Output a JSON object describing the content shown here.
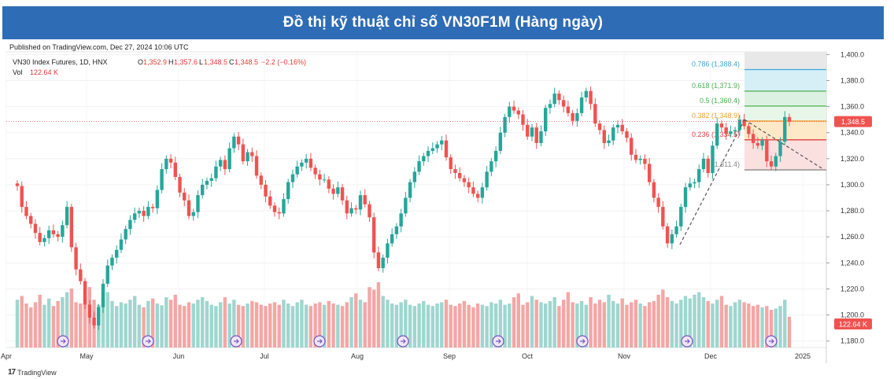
{
  "banner": {
    "title": "Đồ thị kỹ thuật chỉ số VN30F1M (Hàng ngày)"
  },
  "published": "Published on TradingView.com, Dec 27, 2024 10:06 UTC",
  "legend": {
    "symbol": "VN30 Index Futures, 1D, HNX",
    "o_label": "O",
    "o": "1,352.9",
    "h_label": "H",
    "h": "1,357.6",
    "l_label": "L",
    "l": "1,348.5",
    "c_label": "C",
    "c": "1,348.5",
    "change": "−2.2 (−0.16%)",
    "vol_label": "Vol",
    "vol": "122.64 K"
  },
  "watermark": "TradingView",
  "colors": {
    "up": "#26a69a",
    "down": "#ef5350",
    "up_vol": "#9fd6cf",
    "down_vol": "#f3a7a5"
  },
  "chart_data": {
    "type": "candlestick",
    "y_ticks": [
      "1,180.0",
      "1,200.0",
      "1,220.0",
      "1,240.0",
      "1,260.0",
      "1,280.0",
      "1,300.0",
      "1,320.0",
      "1,340.0",
      "1,360.0",
      "1,380.0",
      "1,400.0"
    ],
    "ylim": [
      1175,
      1402
    ],
    "x_ticks": [
      "Apr",
      "May",
      "Jun",
      "Jul",
      "Aug",
      "Sep",
      "Oct",
      "Nov",
      "Dec",
      "2025"
    ],
    "last_price_label": "1,348.5",
    "last_volume_label": "122.64 K",
    "fib_levels": [
      {
        "label": "0.786 (1,388.4)",
        "value": 1388.4,
        "color": "#3fa7d6"
      },
      {
        "label": "0.618 (1,371.9)",
        "value": 1371.9,
        "color": "#4caf50"
      },
      {
        "label": "0.5 (1,360.4)",
        "value": 1360.4,
        "color": "#4caf50"
      },
      {
        "label": "0.382 (1,348.9)",
        "value": 1348.9,
        "color": "#f0a030"
      },
      {
        "label": "0.236 (1,334.5)",
        "value": 1334.5,
        "color": "#e04040"
      },
      {
        "label": "0 (1,311.4)",
        "value": 1311.4,
        "color": "#888888"
      }
    ],
    "closes": [
      1299,
      1283,
      1276,
      1270,
      1263,
      1256,
      1259,
      1265,
      1262,
      1260,
      1269,
      1283,
      1252,
      1235,
      1226,
      1208,
      1198,
      1192,
      1206,
      1224,
      1238,
      1244,
      1250,
      1258,
      1266,
      1273,
      1278,
      1280,
      1276,
      1283,
      1282,
      1296,
      1312,
      1320,
      1317,
      1306,
      1294,
      1288,
      1276,
      1279,
      1292,
      1300,
      1303,
      1305,
      1314,
      1319,
      1312,
      1328,
      1337,
      1331,
      1318,
      1325,
      1322,
      1307,
      1300,
      1291,
      1284,
      1279,
      1278,
      1289,
      1302,
      1308,
      1314,
      1317,
      1320,
      1313,
      1308,
      1304,
      1304,
      1297,
      1293,
      1298,
      1288,
      1278,
      1282,
      1281,
      1292,
      1285,
      1275,
      1248,
      1236,
      1244,
      1255,
      1262,
      1268,
      1278,
      1290,
      1302,
      1310,
      1318,
      1322,
      1326,
      1328,
      1331,
      1334,
      1321,
      1312,
      1309,
      1305,
      1302,
      1298,
      1293,
      1290,
      1298,
      1310,
      1318,
      1326,
      1340,
      1352,
      1360,
      1357,
      1354,
      1346,
      1337,
      1344,
      1332,
      1341,
      1359,
      1362,
      1370,
      1365,
      1360,
      1355,
      1349,
      1355,
      1367,
      1372,
      1362,
      1347,
      1342,
      1332,
      1334,
      1344,
      1346,
      1341,
      1336,
      1323,
      1319,
      1320,
      1316,
      1302,
      1290,
      1283,
      1268,
      1255,
      1262,
      1268,
      1283,
      1298,
      1301,
      1302,
      1312,
      1320,
      1309,
      1330,
      1347,
      1344,
      1339,
      1341,
      1342,
      1350,
      1345,
      1339,
      1332,
      1330,
      1334,
      1318,
      1314,
      1322,
      1333,
      1352,
      1348.5
    ],
    "volumes": [
      190,
      205,
      175,
      160,
      180,
      210,
      170,
      195,
      165,
      185,
      200,
      220,
      235,
      180,
      175,
      205,
      240,
      190,
      170,
      200,
      220,
      185,
      165,
      180,
      175,
      190,
      205,
      170,
      160,
      185,
      195,
      175,
      168,
      200,
      190,
      210,
      170,
      165,
      180,
      175,
      190,
      200,
      185,
      170,
      165,
      180,
      200,
      175,
      190,
      170,
      165,
      175,
      185,
      180,
      170,
      165,
      175,
      180,
      170,
      190,
      175,
      165,
      180,
      190,
      170,
      165,
      175,
      180,
      170,
      185,
      175,
      170,
      165,
      180,
      200,
      215,
      190,
      180,
      240,
      230,
      260,
      205,
      190,
      175,
      170,
      180,
      190,
      170,
      165,
      175,
      185,
      170,
      165,
      175,
      180,
      190,
      170,
      165,
      175,
      185,
      170,
      160,
      175,
      170,
      165,
      180,
      175,
      190,
      170,
      175,
      200,
      215,
      170,
      180,
      205,
      190,
      180,
      175,
      185,
      200,
      165,
      190,
      220,
      180,
      175,
      185,
      170,
      200,
      175,
      190,
      180,
      210,
      185,
      175,
      195,
      170,
      180,
      190,
      175,
      165,
      180,
      185,
      210,
      230,
      200,
      185,
      175,
      190,
      205,
      195,
      210,
      220,
      200,
      185,
      175,
      190,
      205,
      170,
      165,
      180,
      190,
      180,
      175,
      165,
      170,
      160,
      165,
      150,
      155,
      165,
      190,
      122.64
    ]
  }
}
